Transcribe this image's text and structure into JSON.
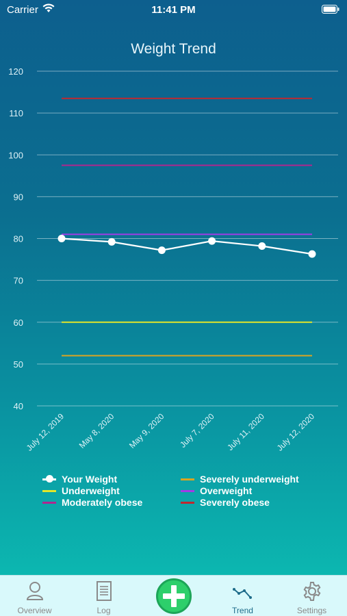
{
  "status": {
    "carrier": "Carrier",
    "time": "11:41 PM"
  },
  "title": "Weight Trend",
  "chart_data": {
    "type": "line",
    "title": "Weight Trend",
    "xlabel": "",
    "ylabel": "",
    "ylim": [
      40,
      120
    ],
    "yticks": [
      40,
      50,
      60,
      70,
      80,
      90,
      100,
      110,
      120
    ],
    "grid": true,
    "legend": "bottom",
    "categories": [
      "July 12, 2019",
      "May 8, 2020",
      "May 9, 2020",
      "July 7, 2020",
      "July 11, 2020",
      "July 12, 2020"
    ],
    "series": [
      {
        "name": "Your Weight",
        "color": "#ffffff",
        "markers": true,
        "values": [
          80,
          79.2,
          77.2,
          79.4,
          78.2,
          76.3
        ]
      },
      {
        "name": "Severely underweight",
        "color": "#d9a521",
        "values": [
          52,
          52,
          52,
          52,
          52,
          52
        ]
      },
      {
        "name": "Underweight",
        "color": "#e3e629",
        "values": [
          60,
          60,
          60,
          60,
          60,
          60
        ]
      },
      {
        "name": "Overweight",
        "color": "#a23be6",
        "values": [
          81,
          81,
          81,
          81,
          81,
          81
        ]
      },
      {
        "name": "Moderately obese",
        "color": "#b0268f",
        "values": [
          97.5,
          97.5,
          97.5,
          97.5,
          97.5,
          97.5
        ]
      },
      {
        "name": "Severely obese",
        "color": "#c0282f",
        "values": [
          113.5,
          113.5,
          113.5,
          113.5,
          113.5,
          113.5
        ]
      }
    ]
  },
  "legend": {
    "items": [
      {
        "label": "Your Weight",
        "color": "#ffffff",
        "marker": true
      },
      {
        "label": "Severely underweight",
        "color": "#d9a521"
      },
      {
        "label": "Underweight",
        "color": "#e3e629"
      },
      {
        "label": "Overweight",
        "color": "#a23be6"
      },
      {
        "label": "Moderately obese",
        "color": "#b0268f"
      },
      {
        "label": "Severely obese",
        "color": "#c0282f"
      }
    ]
  },
  "tabs": [
    {
      "label": "Overview",
      "icon": "person-icon",
      "active": false
    },
    {
      "label": "Log",
      "icon": "document-icon",
      "active": false
    },
    {
      "label": "",
      "icon": "plus-icon",
      "active": false
    },
    {
      "label": "Trend",
      "icon": "trend-icon",
      "active": true
    },
    {
      "label": "Settings",
      "icon": "gear-icon",
      "active": false
    }
  ]
}
